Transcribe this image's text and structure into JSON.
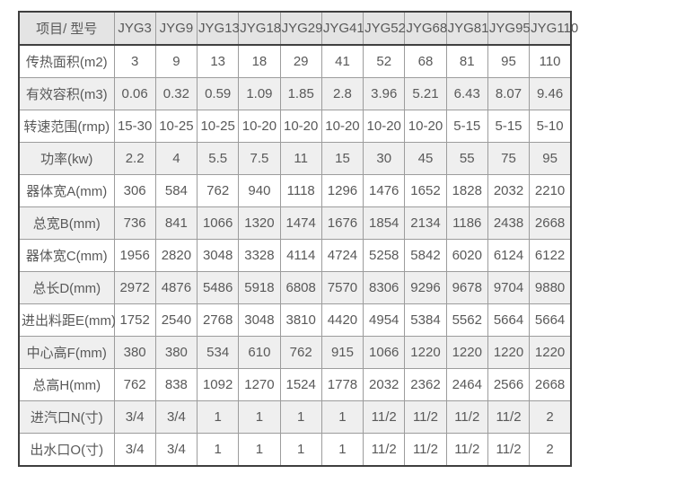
{
  "table": {
    "header": [
      "项目/ 型号",
      "JYG3",
      "JYG9",
      "JYG13",
      "JYG18",
      "JYG29",
      "JYG41",
      "JYG52",
      "JYG68",
      "JYG81",
      "JYG95",
      "JYG110"
    ],
    "rows": [
      {
        "label": "传热面积(m2)",
        "values": [
          "3",
          "9",
          "13",
          "18",
          "29",
          "41",
          "52",
          "68",
          "81",
          "95",
          "110"
        ]
      },
      {
        "label": "有效容积(m3)",
        "values": [
          "0.06",
          "0.32",
          "0.59",
          "1.09",
          "1.85",
          "2.8",
          "3.96",
          "5.21",
          "6.43",
          "8.07",
          "9.46"
        ]
      },
      {
        "label": "转速范围(rmp)",
        "values": [
          "15-30",
          "10-25",
          "10-25",
          "10-20",
          "10-20",
          "10-20",
          "10-20",
          "10-20",
          "5-15",
          "5-15",
          "5-10"
        ]
      },
      {
        "label": "功率(kw)",
        "values": [
          "2.2",
          "4",
          "5.5",
          "7.5",
          "11",
          "15",
          "30",
          "45",
          "55",
          "75",
          "95"
        ]
      },
      {
        "label": "器体宽A(mm)",
        "values": [
          "306",
          "584",
          "762",
          "940",
          "1118",
          "1296",
          "1476",
          "1652",
          "1828",
          "2032",
          "2210"
        ]
      },
      {
        "label": "总宽B(mm)",
        "values": [
          "736",
          "841",
          "1066",
          "1320",
          "1474",
          "1676",
          "1854",
          "2134",
          "1186",
          "2438",
          "2668"
        ]
      },
      {
        "label": "器体宽C(mm)",
        "values": [
          "1956",
          "2820",
          "3048",
          "3328",
          "4114",
          "4724",
          "5258",
          "5842",
          "6020",
          "6124",
          "6122"
        ]
      },
      {
        "label": "总长D(mm)",
        "values": [
          "2972",
          "4876",
          "5486",
          "5918",
          "6808",
          "7570",
          "8306",
          "9296",
          "9678",
          "9704",
          "9880"
        ]
      },
      {
        "label": "进出料距E(mm)",
        "values": [
          "1752",
          "2540",
          "2768",
          "3048",
          "3810",
          "4420",
          "4954",
          "5384",
          "5562",
          "5664",
          "5664"
        ]
      },
      {
        "label": "中心高F(mm)",
        "values": [
          "380",
          "380",
          "534",
          "610",
          "762",
          "915",
          "1066",
          "1220",
          "1220",
          "1220",
          "1220"
        ]
      },
      {
        "label": "总高H(mm)",
        "values": [
          "762",
          "838",
          "1092",
          "1270",
          "1524",
          "1778",
          "2032",
          "2362",
          "2464",
          "2566",
          "2668"
        ]
      },
      {
        "label": "进汽口N(寸)",
        "values": [
          "3/4",
          "3/4",
          "1",
          "1",
          "1",
          "1",
          "11/2",
          "11/2",
          "11/2",
          "11/2",
          "2"
        ]
      },
      {
        "label": "出水口O(寸)",
        "values": [
          "3/4",
          "3/4",
          "1",
          "1",
          "1",
          "1",
          "11/2",
          "11/2",
          "11/2",
          "11/2",
          "2"
        ]
      }
    ]
  },
  "colors": {
    "header_bg": "#e4e4e4",
    "stripe_bg": "#efefef",
    "row_bg": "#ffffff",
    "text": "#595959",
    "inner_border": "#9c9c9c",
    "outer_border": "#3f3f3f"
  }
}
